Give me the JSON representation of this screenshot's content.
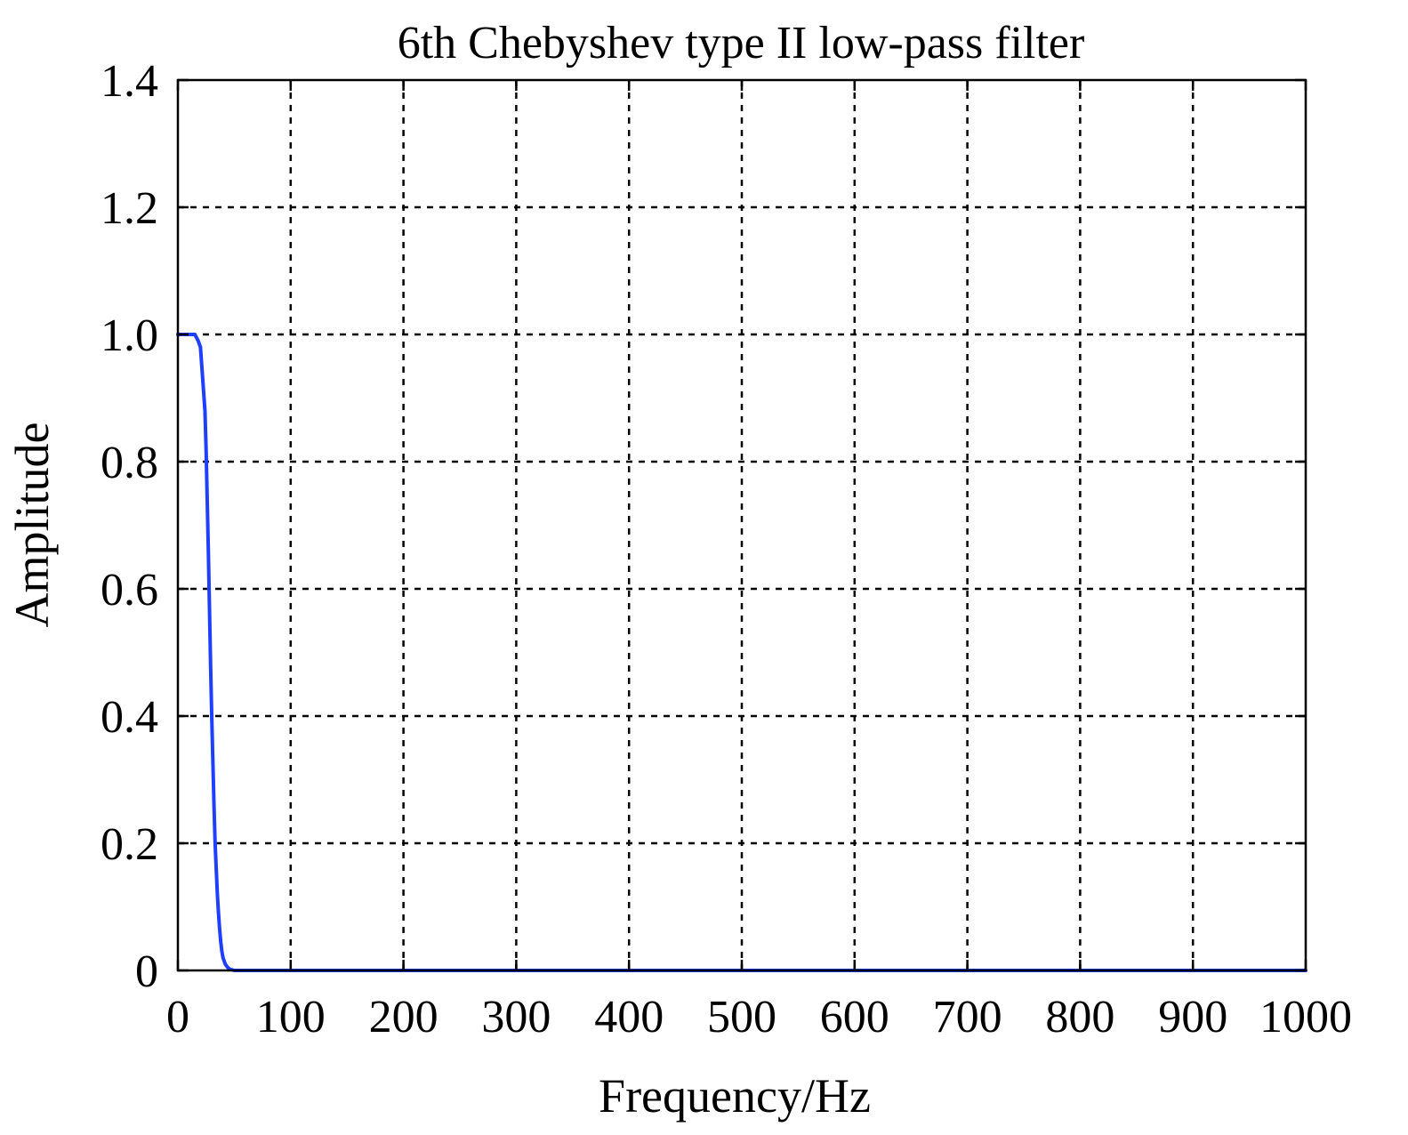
{
  "chart_data": {
    "type": "line",
    "title": "6th Chebyshev type II low-pass filter",
    "xlabel": "Frequency/Hz",
    "ylabel": "Amplitude",
    "xlim": [
      0,
      1000
    ],
    "ylim": [
      0,
      1.4
    ],
    "x_ticks": [
      0,
      100,
      200,
      300,
      400,
      500,
      600,
      700,
      800,
      900,
      1000
    ],
    "x_tick_labels": [
      "0",
      "100",
      "200",
      "300",
      "400",
      "500",
      "600",
      "700",
      "800",
      "900",
      "1000"
    ],
    "y_ticks": [
      0,
      0.2,
      0.4,
      0.6,
      0.8,
      1.0,
      1.2,
      1.4
    ],
    "y_tick_labels": [
      "0",
      "0.2",
      "0.4",
      "0.6",
      "0.8",
      "1.0",
      "1.2",
      "1.4"
    ],
    "grid": true,
    "grid_style": "dashed",
    "series": [
      {
        "color": "#1f3fff",
        "x": [
          0,
          5,
          10,
          15,
          18,
          20,
          22,
          24,
          25,
          26,
          27,
          28,
          29,
          30,
          31,
          32,
          33,
          34,
          35,
          36,
          37,
          38,
          39,
          40,
          42,
          44,
          46,
          48,
          50,
          60,
          80,
          100,
          200,
          300,
          400,
          500,
          600,
          700,
          800,
          900,
          1000
        ],
        "y": [
          1.0,
          1.0,
          1.0,
          1.0,
          0.99,
          0.98,
          0.93,
          0.88,
          0.82,
          0.74,
          0.66,
          0.57,
          0.48,
          0.4,
          0.33,
          0.26,
          0.2,
          0.16,
          0.12,
          0.09,
          0.065,
          0.045,
          0.03,
          0.02,
          0.01,
          0.005,
          0.002,
          0.001,
          0.0,
          0.0,
          0.0,
          0.0,
          0.0,
          0.0,
          0.0,
          0.0,
          0.0,
          0.0,
          0.0,
          0.0,
          0.0
        ]
      }
    ]
  }
}
